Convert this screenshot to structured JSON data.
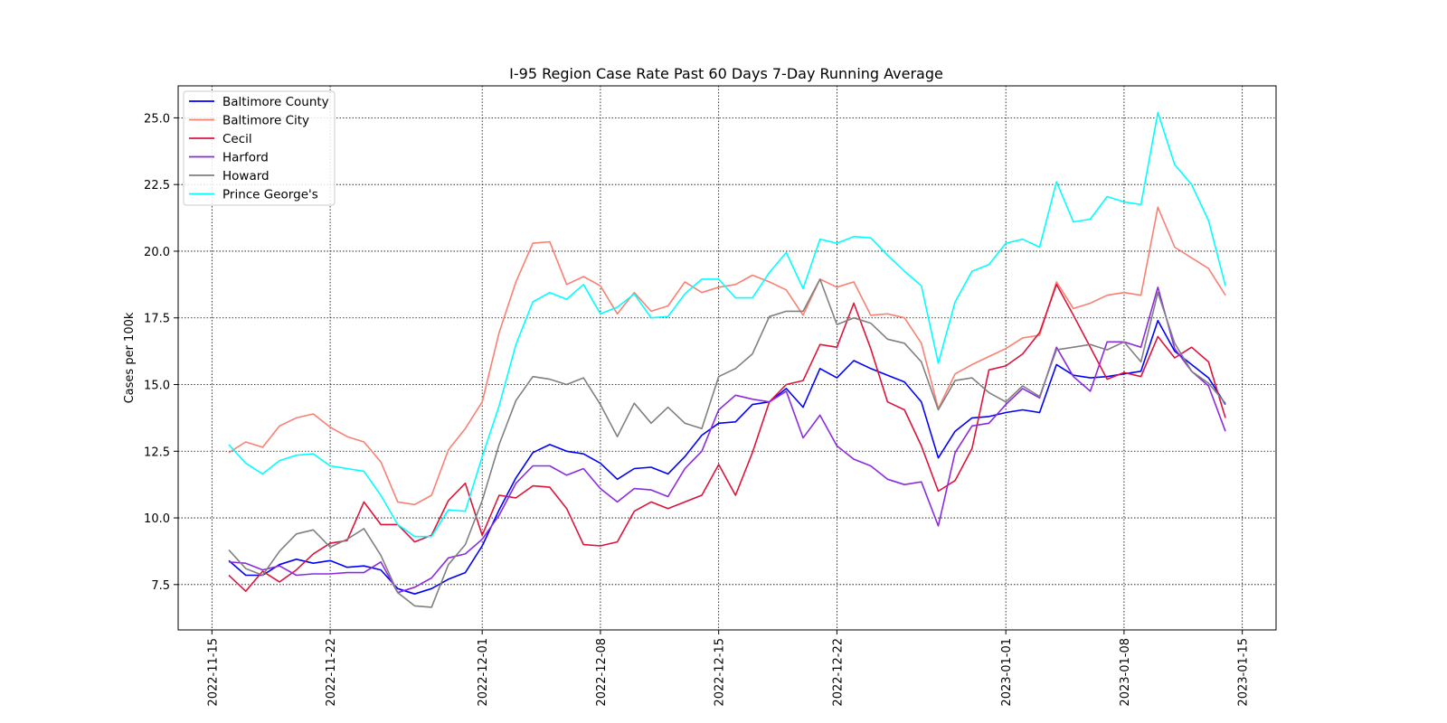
{
  "chart_data": {
    "type": "line",
    "title": "I-95 Region Case Rate  Past 60 Days 7-Day Running Average",
    "xlabel": "",
    "ylabel": "Cases per 100k",
    "x_axis": "date",
    "xlim": [
      "2022-11-13",
      "2023-01-17"
    ],
    "ylim": [
      5.8,
      26.2
    ],
    "x_ticks": [
      "2022-11-15",
      "2022-11-22",
      "2022-12-01",
      "2022-12-08",
      "2022-12-15",
      "2022-12-22",
      "2023-01-01",
      "2023-01-08",
      "2023-01-15"
    ],
    "y_ticks": [
      7.5,
      10.0,
      12.5,
      15.0,
      17.5,
      20.0,
      22.5,
      25.0
    ],
    "y_tick_labels": [
      "7.5",
      "10.0",
      "12.5",
      "15.0",
      "17.5",
      "20.0",
      "22.5",
      "25.0"
    ],
    "grid": true,
    "grid_style": "dotted",
    "legend_position": "upper-left",
    "x_start": "2022-11-16",
    "series": [
      {
        "name": "Baltimore County",
        "color": "#0000ff",
        "values": [
          8.4,
          7.85,
          7.85,
          8.25,
          8.45,
          8.3,
          8.4,
          8.15,
          8.2,
          8.05,
          7.35,
          7.15,
          7.35,
          7.7,
          7.95,
          8.95,
          10.3,
          11.5,
          12.45,
          12.75,
          12.5,
          12.4,
          12.05,
          11.45,
          11.85,
          11.9,
          11.65,
          12.3,
          13.1,
          13.55,
          13.6,
          14.25,
          14.35,
          14.85,
          14.15,
          15.6,
          15.25,
          15.9,
          15.6,
          15.35,
          15.1,
          14.35,
          12.25,
          13.25,
          13.75,
          13.8,
          13.95,
          14.05,
          13.95,
          15.75,
          15.35,
          15.25,
          15.3,
          15.4,
          15.5,
          17.4,
          16.25,
          15.75,
          15.25,
          14.25
        ]
      },
      {
        "name": "Baltimore City",
        "color": "#fa8072",
        "values": [
          12.45,
          12.85,
          12.65,
          13.45,
          13.75,
          13.9,
          13.4,
          13.05,
          12.85,
          12.1,
          10.6,
          10.5,
          10.85,
          12.55,
          13.35,
          14.35,
          16.95,
          18.85,
          20.3,
          20.35,
          18.75,
          19.05,
          18.7,
          17.65,
          18.45,
          17.75,
          17.95,
          18.85,
          18.45,
          18.65,
          18.75,
          19.1,
          18.85,
          18.55,
          17.6,
          18.95,
          18.65,
          18.85,
          17.6,
          17.65,
          17.5,
          16.55,
          14.1,
          15.4,
          15.75,
          16.05,
          16.35,
          16.75,
          16.85,
          18.85,
          17.85,
          18.05,
          18.35,
          18.45,
          18.35,
          21.65,
          20.15,
          19.75,
          19.35,
          18.35
        ]
      },
      {
        "name": "Cecil",
        "color": "#dc143c",
        "values": [
          7.85,
          7.25,
          8.0,
          7.6,
          8.05,
          8.65,
          9.05,
          9.15,
          10.6,
          9.75,
          9.75,
          9.1,
          9.35,
          10.65,
          11.3,
          9.35,
          10.85,
          10.75,
          11.2,
          11.15,
          10.35,
          9.0,
          8.95,
          9.1,
          10.25,
          10.6,
          10.35,
          10.6,
          10.85,
          12.0,
          10.85,
          12.45,
          14.35,
          15.0,
          15.15,
          16.5,
          16.4,
          18.05,
          16.35,
          14.35,
          14.05,
          12.7,
          11.0,
          11.4,
          12.6,
          15.55,
          15.7,
          16.15,
          16.95,
          18.75,
          17.6,
          16.4,
          15.2,
          15.45,
          15.3,
          16.8,
          16.0,
          16.4,
          15.85,
          13.75
        ]
      },
      {
        "name": "Harford",
        "color": "#8a2be2",
        "values": [
          8.35,
          8.3,
          8.05,
          8.2,
          7.85,
          7.9,
          7.9,
          7.95,
          7.95,
          8.35,
          7.2,
          7.4,
          7.75,
          8.5,
          8.65,
          9.2,
          10.1,
          11.3,
          11.95,
          11.95,
          11.6,
          11.85,
          11.1,
          10.6,
          11.1,
          11.05,
          10.8,
          11.85,
          12.5,
          14.05,
          14.6,
          14.45,
          14.35,
          14.75,
          13.0,
          13.85,
          12.7,
          12.2,
          11.95,
          11.45,
          11.25,
          11.35,
          9.7,
          12.45,
          13.45,
          13.55,
          14.25,
          14.85,
          14.5,
          16.4,
          15.3,
          14.75,
          16.6,
          16.6,
          16.4,
          18.65,
          16.35,
          15.5,
          14.95,
          13.25
        ]
      },
      {
        "name": "Howard",
        "color": "#808080",
        "values": [
          8.8,
          8.1,
          7.85,
          8.75,
          9.4,
          9.55,
          8.9,
          9.2,
          9.6,
          8.6,
          7.2,
          6.7,
          6.65,
          8.25,
          9.0,
          10.65,
          12.75,
          14.4,
          15.3,
          15.2,
          15.0,
          15.25,
          14.25,
          13.05,
          14.3,
          13.55,
          14.15,
          13.55,
          13.35,
          15.3,
          15.6,
          16.15,
          17.55,
          17.75,
          17.75,
          18.95,
          17.25,
          17.5,
          17.3,
          16.7,
          16.55,
          15.85,
          14.05,
          15.15,
          15.25,
          14.7,
          14.35,
          14.95,
          14.55,
          16.3,
          16.4,
          16.5,
          16.3,
          16.6,
          15.85,
          18.45,
          16.55,
          15.5,
          15.05,
          14.3
        ]
      },
      {
        "name": "Prince George's",
        "color": "#00ffff",
        "values": [
          12.75,
          12.05,
          11.65,
          12.15,
          12.35,
          12.4,
          11.95,
          11.85,
          11.75,
          10.85,
          9.75,
          9.3,
          9.3,
          10.3,
          10.25,
          12.3,
          14.2,
          16.5,
          18.1,
          18.45,
          18.2,
          18.75,
          17.65,
          17.9,
          18.4,
          17.5,
          17.55,
          18.4,
          18.95,
          18.95,
          18.25,
          18.25,
          19.2,
          19.95,
          18.6,
          20.45,
          20.3,
          20.55,
          20.5,
          19.85,
          19.25,
          18.7,
          15.8,
          18.1,
          19.25,
          19.5,
          20.3,
          20.45,
          20.15,
          22.6,
          21.1,
          21.2,
          22.05,
          21.85,
          21.75,
          25.2,
          23.25,
          22.5,
          21.15,
          18.7
        ]
      }
    ]
  }
}
